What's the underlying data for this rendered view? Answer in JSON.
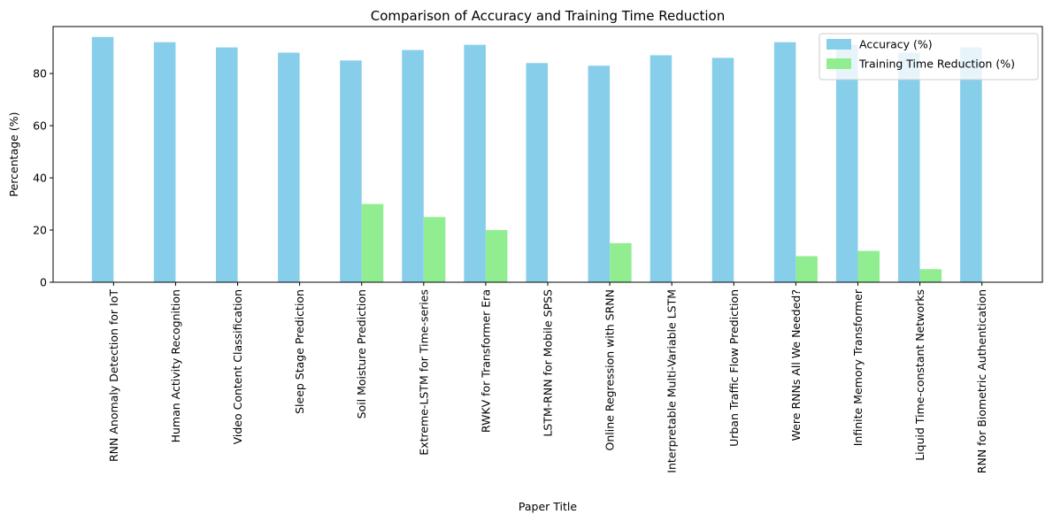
{
  "chart_data": {
    "type": "bar",
    "title": "Comparison of Accuracy and Training Time Reduction",
    "xlabel": "Paper Title",
    "ylabel": "Percentage (%)",
    "ylim": [
      0,
      98
    ],
    "yticks": [
      "0",
      "20",
      "40",
      "60",
      "80"
    ],
    "legend_position": "top-right",
    "categories": [
      "RNN Anomaly Detection for IoT",
      "Human Activity Recognition",
      "Video Content Classification",
      "Sleep Stage Prediction",
      "Soil Moisture Prediction",
      "Extreme-LSTM for Time-series",
      "RWKV for Transformer Era",
      "LSTM-RNN for Mobile SPSS",
      "Online Regression with SRNN",
      "Interpretable Multi-Variable LSTM",
      "Urban Traffic Flow Prediction",
      "Were RNNs All We Needed?",
      "Infinite Memory Transformer",
      "Liquid Time-constant Networks",
      "RNN for Biometric Authentication"
    ],
    "series": [
      {
        "name": "Accuracy (%)",
        "color": "#87ceeb",
        "values": [
          94,
          92,
          90,
          88,
          85,
          89,
          91,
          84,
          83,
          87,
          86,
          92,
          91,
          88,
          90
        ]
      },
      {
        "name": "Training Time Reduction (%)",
        "color": "#90ee90",
        "values": [
          0,
          0,
          0,
          0,
          30,
          25,
          20,
          0,
          15,
          0,
          0,
          10,
          12,
          5,
          0
        ]
      }
    ]
  }
}
